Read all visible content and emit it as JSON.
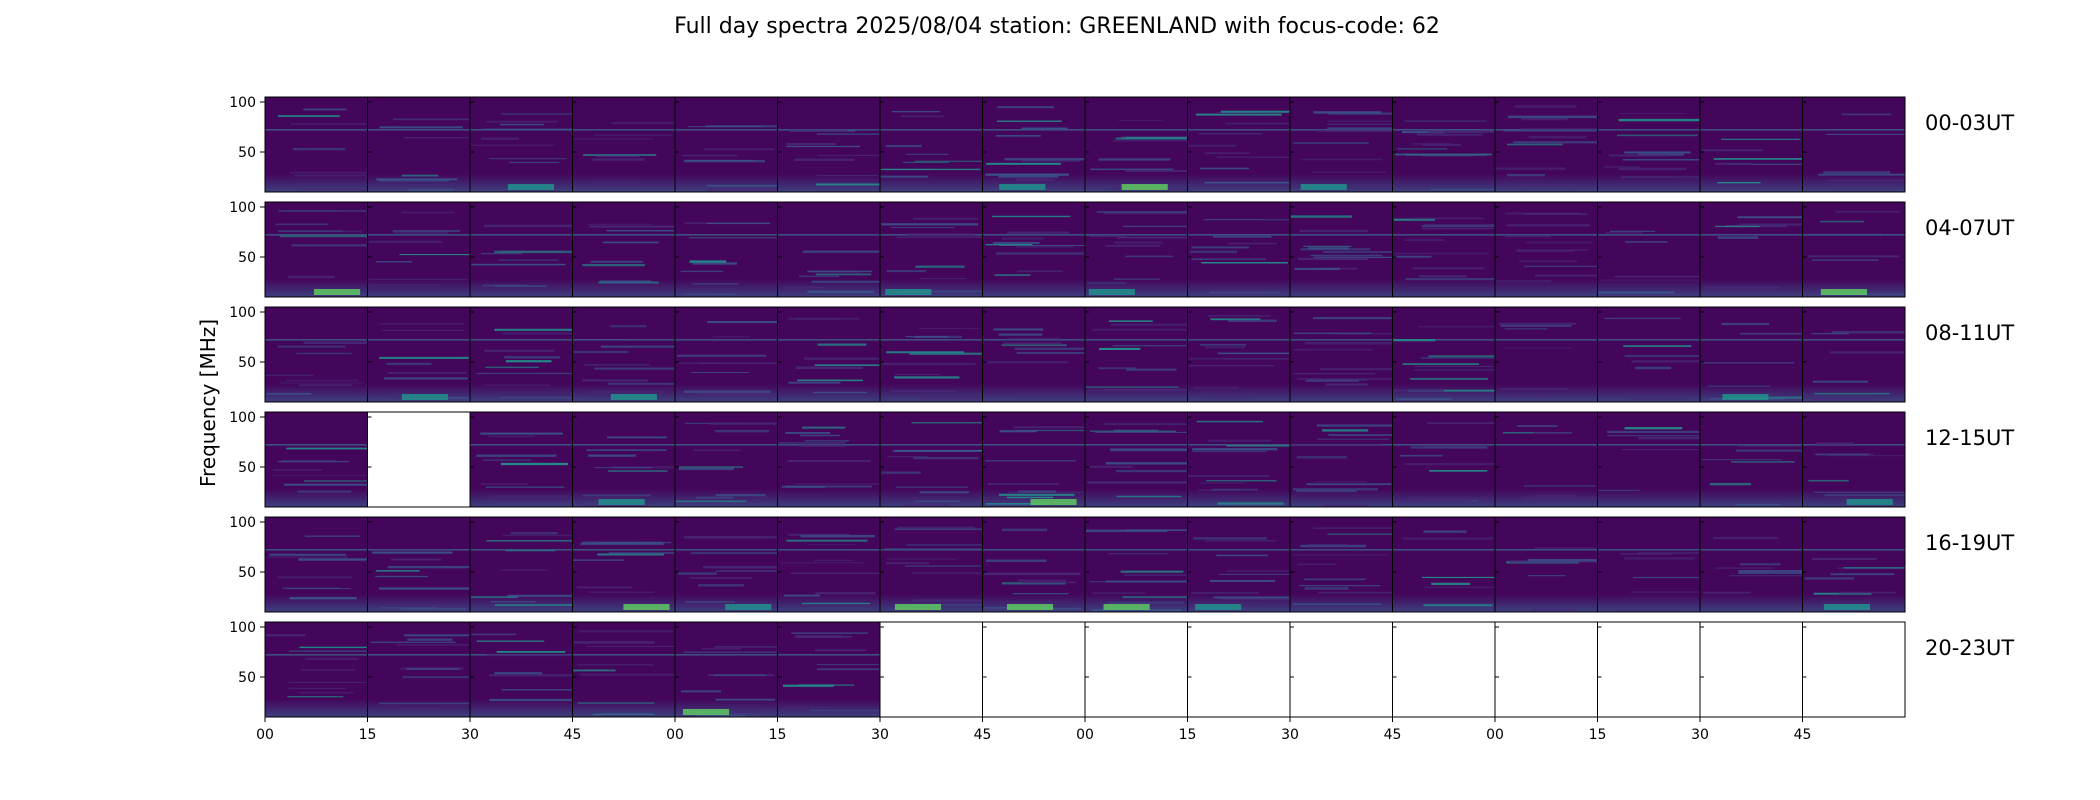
{
  "chart_data": {
    "type": "heatmap",
    "title": "Full day spectra 2025/08/04 station: GREENLAND with focus-code: 62",
    "ylabel": "Frequency [MHz]",
    "ylim": [
      10,
      105
    ],
    "y_ticks": [
      "50",
      "100"
    ],
    "x_ticks": [
      "00",
      "15",
      "30",
      "45",
      "00",
      "15",
      "30",
      "45",
      "00",
      "15",
      "30",
      "45",
      "00",
      "15",
      "30",
      "45"
    ],
    "rows": [
      {
        "label": "00-03UT",
        "available": [
          true,
          true,
          true,
          true,
          true,
          true,
          true,
          true,
          true,
          true,
          true,
          true,
          true,
          true,
          true,
          true
        ]
      },
      {
        "label": "04-07UT",
        "available": [
          true,
          true,
          true,
          true,
          true,
          true,
          true,
          true,
          true,
          true,
          true,
          true,
          true,
          true,
          true,
          true
        ]
      },
      {
        "label": "08-11UT",
        "available": [
          true,
          true,
          true,
          true,
          true,
          true,
          true,
          true,
          true,
          true,
          true,
          true,
          true,
          true,
          true,
          true
        ]
      },
      {
        "label": "12-15UT",
        "available": [
          true,
          false,
          true,
          true,
          true,
          true,
          true,
          true,
          true,
          true,
          true,
          true,
          true,
          true,
          true,
          true
        ]
      },
      {
        "label": "16-19UT",
        "available": [
          true,
          true,
          true,
          true,
          true,
          true,
          true,
          true,
          true,
          true,
          true,
          true,
          true,
          true,
          true,
          true
        ]
      },
      {
        "label": "20-23UT",
        "available": [
          true,
          true,
          true,
          true,
          true,
          true,
          false,
          false,
          false,
          false,
          false,
          false,
          false,
          false,
          false,
          false
        ]
      }
    ],
    "colormap": [
      "#440154",
      "#3b528b",
      "#21918c",
      "#5ec962",
      "#fde725"
    ],
    "background_color": "#44065a"
  }
}
